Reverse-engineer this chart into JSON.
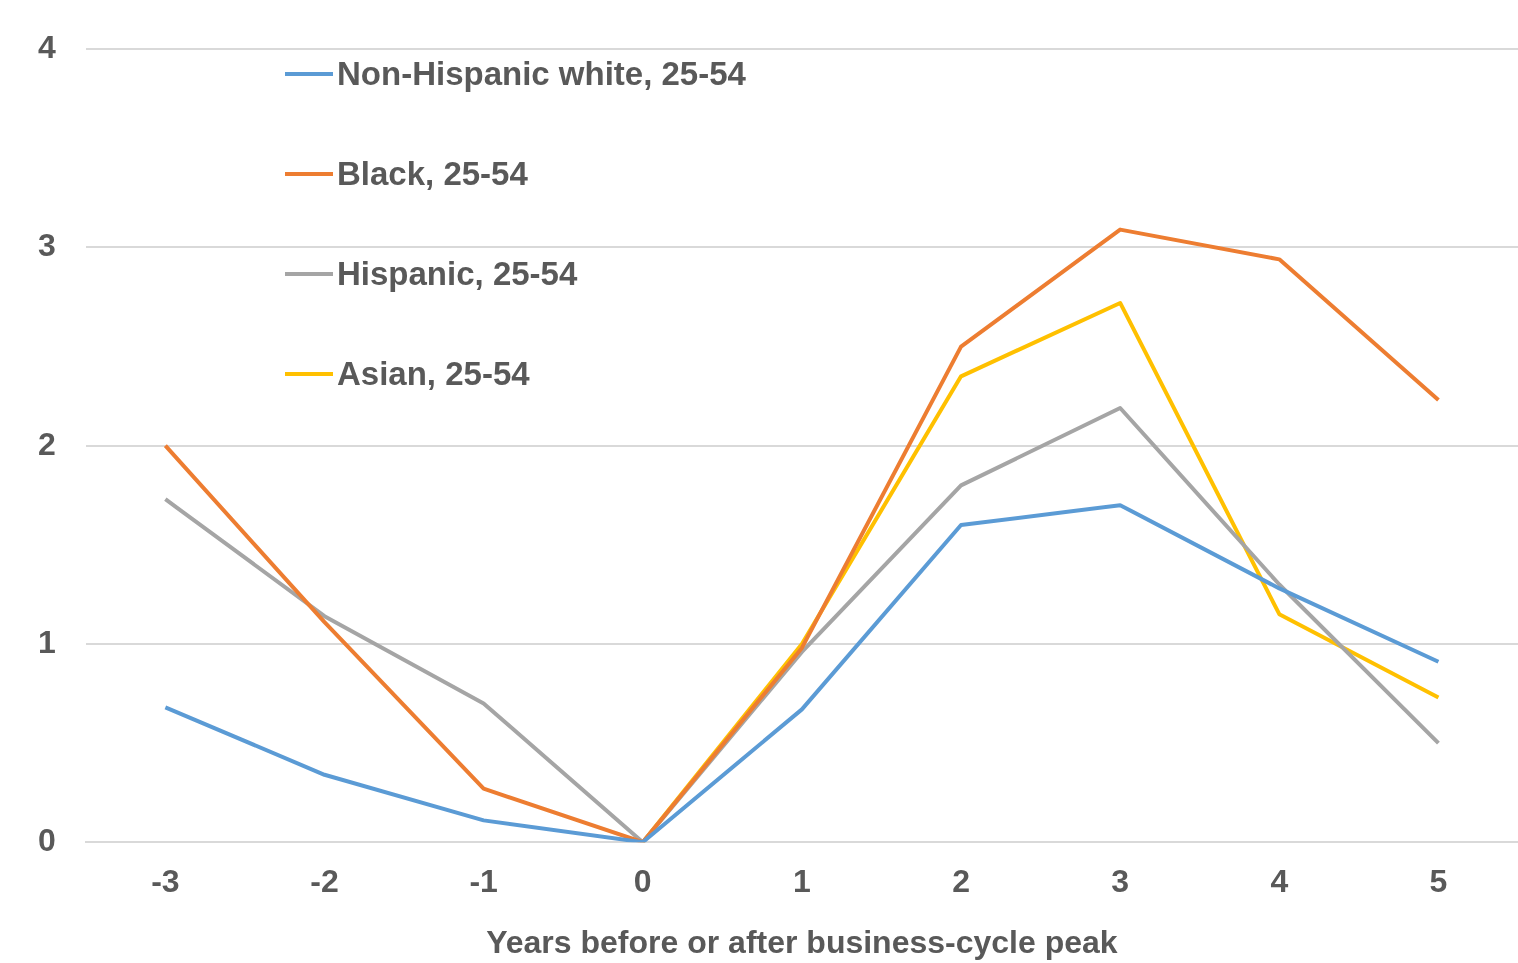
{
  "chart_data": {
    "type": "line",
    "xlabel": "Years before or after business-cycle peak",
    "categories": [
      "-3",
      "-2",
      "-1",
      "0",
      "1",
      "2",
      "3",
      "4",
      "5"
    ],
    "series": [
      {
        "name": "Non-Hispanic white, 25-54",
        "color": "#5b9bd5",
        "values": [
          0.68,
          0.34,
          0.11,
          0,
          0.67,
          1.6,
          1.7,
          1.28,
          0.91
        ]
      },
      {
        "name": "Black, 25-54",
        "color": "#ed7d31",
        "values": [
          2.0,
          1.11,
          0.27,
          0,
          0.98,
          2.5,
          3.09,
          2.94,
          2.23
        ]
      },
      {
        "name": "Hispanic, 25-54",
        "color": "#a5a5a5",
        "values": [
          1.73,
          1.14,
          0.7,
          0,
          0.96,
          1.8,
          2.19,
          1.3,
          0.5
        ]
      },
      {
        "name": "Asian, 25-54",
        "color": "#ffc000",
        "values": [
          null,
          null,
          null,
          0,
          1.0,
          2.35,
          2.72,
          1.15,
          0.73
        ]
      }
    ],
    "ylim": [
      0,
      4
    ],
    "yticks": [
      0,
      1,
      2,
      3,
      4
    ],
    "grid": "y",
    "legend": "top left",
    "marker": "none",
    "line_style": "solid"
  }
}
